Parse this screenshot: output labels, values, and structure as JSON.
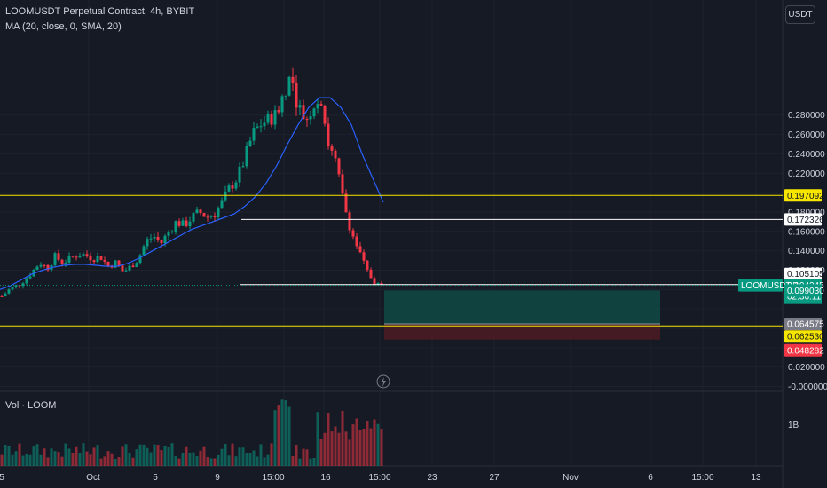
{
  "legend": {
    "symbol_title": "LOOMUSDT Perpetual Contract, 4h, BYBIT",
    "ma_label": "MA (20, close, 0, SMA, 20)",
    "volume_label": "Vol · LOOM"
  },
  "currency_button": "USDT",
  "price_axis": {
    "ticks": [
      "0.280000",
      "0.260000",
      "0.240000",
      "0.220000",
      "0.180000",
      "0.160000",
      "0.140000",
      "0.120000",
      "0.020000",
      "-0.000000"
    ],
    "volume_tick": "1B"
  },
  "time_axis": {
    "ticks": [
      "5",
      "Oct",
      "5",
      "9",
      "15:00",
      "16",
      "15:00",
      "23",
      "27",
      "Nov",
      "6",
      "15:00",
      "13"
    ]
  },
  "price_labels": {
    "resistance_level": "0.197092",
    "level_172": "0.172326",
    "level_105": "0.105105",
    "symbol_tag": "LOOMUSDT.P",
    "last_price": "0.104245",
    "countdown": "02:36:11",
    "target_price": "0.099030",
    "entry_price": "0.064575",
    "support_level": "0.062530",
    "stop_price": "0.048282"
  },
  "colors": {
    "up": "#089981",
    "down": "#f23645",
    "ma": "#2962ff",
    "level_yellow": "#f7e600",
    "level_white": "#ffffff",
    "profit_zone": "#0f4a44",
    "loss_zone": "#4a1c23",
    "background": "#161a25"
  },
  "chart_data": {
    "type": "candlestick",
    "timeframe": "4h",
    "y_axis": {
      "min": 0.0,
      "max": 0.29,
      "scale": "linear"
    },
    "horizontal_levels": [
      0.197092,
      0.172326,
      0.105105,
      0.06253
    ],
    "position": {
      "entry": 0.064575,
      "target": 0.09903,
      "stop": 0.048282
    },
    "last_price": 0.104245,
    "price_path": [
      0.093,
      0.1,
      0.104,
      0.11,
      0.118,
      0.128,
      0.122,
      0.134,
      0.128,
      0.132,
      0.136,
      0.136,
      0.132,
      0.134,
      0.124,
      0.128,
      0.118,
      0.124,
      0.132,
      0.15,
      0.155,
      0.148,
      0.16,
      0.17,
      0.166,
      0.174,
      0.18,
      0.175,
      0.178,
      0.19,
      0.205,
      0.215,
      0.235,
      0.26,
      0.27,
      0.275,
      0.28,
      0.3,
      0.32,
      0.29,
      0.275,
      0.29,
      0.3,
      0.25,
      0.23,
      0.19,
      0.16,
      0.14,
      0.12,
      0.108,
      0.104
    ],
    "ma_path": [
      0.1,
      0.104,
      0.11,
      0.116,
      0.12,
      0.123,
      0.125,
      0.126,
      0.126,
      0.125,
      0.124,
      0.124,
      0.127,
      0.132,
      0.138,
      0.144,
      0.15,
      0.156,
      0.162,
      0.166,
      0.17,
      0.174,
      0.178,
      0.186,
      0.196,
      0.21,
      0.228,
      0.25,
      0.27,
      0.288,
      0.298,
      0.298,
      0.288,
      0.27,
      0.24,
      0.215,
      0.19
    ],
    "volume_hint": "spikes near highs and during the sell-off; axis tick 1B"
  }
}
